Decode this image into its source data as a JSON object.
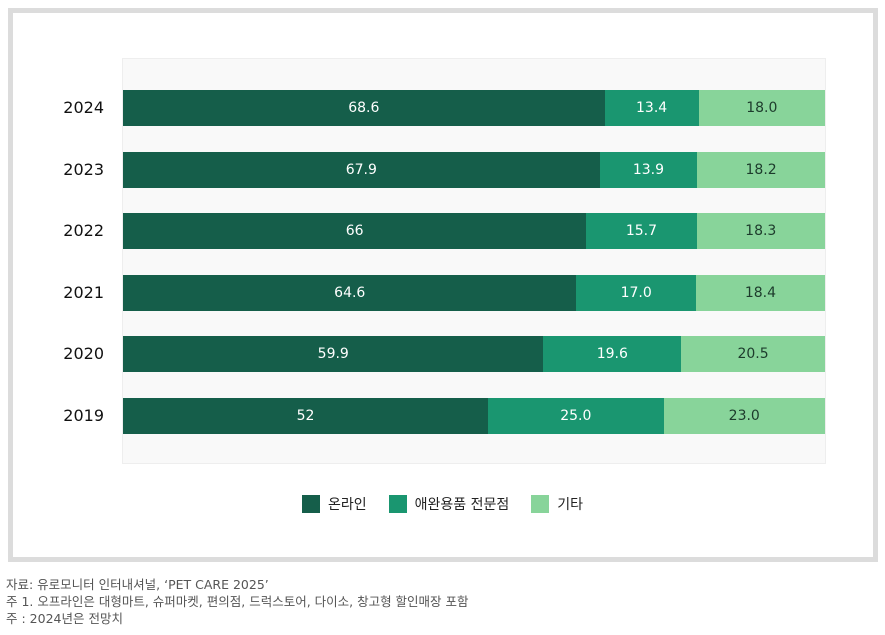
{
  "chart_data": {
    "type": "bar",
    "orientation": "horizontal",
    "stacked": true,
    "categories": [
      "2024",
      "2023",
      "2022",
      "2021",
      "2020",
      "2019"
    ],
    "series": [
      {
        "name": "온라인",
        "color": "#155e4a",
        "values": [
          68.6,
          67.9,
          66,
          64.6,
          59.9,
          52
        ],
        "labels": [
          "68.6",
          "67.9",
          "66",
          "64.6",
          "59.9",
          "52"
        ]
      },
      {
        "name": "애완용품 전문점",
        "color": "#1a9670",
        "values": [
          13.4,
          13.9,
          15.7,
          17.0,
          19.6,
          25.0
        ],
        "labels": [
          "13.4",
          "13.9",
          "15.7",
          "17.0",
          "19.6",
          "25.0"
        ]
      },
      {
        "name": "기타",
        "color": "#88d49a",
        "values": [
          18.0,
          18.2,
          18.3,
          18.4,
          20.5,
          23.0
        ],
        "labels": [
          "18.0",
          "18.2",
          "18.3",
          "18.4",
          "20.5",
          "23.0"
        ]
      }
    ],
    "xlim": [
      0,
      100
    ],
    "legend": "bottom",
    "grid": false
  },
  "notes": [
    "자료: 유로모니터 인터내셔널, ‘PET CARE 2025’",
    "주 1. 오프라인은 대형마트, 슈퍼마켓, 편의점, 드럭스토어, 다이소, 창고형 할인매장  포함",
    "주 : 2024년은 전망치"
  ]
}
